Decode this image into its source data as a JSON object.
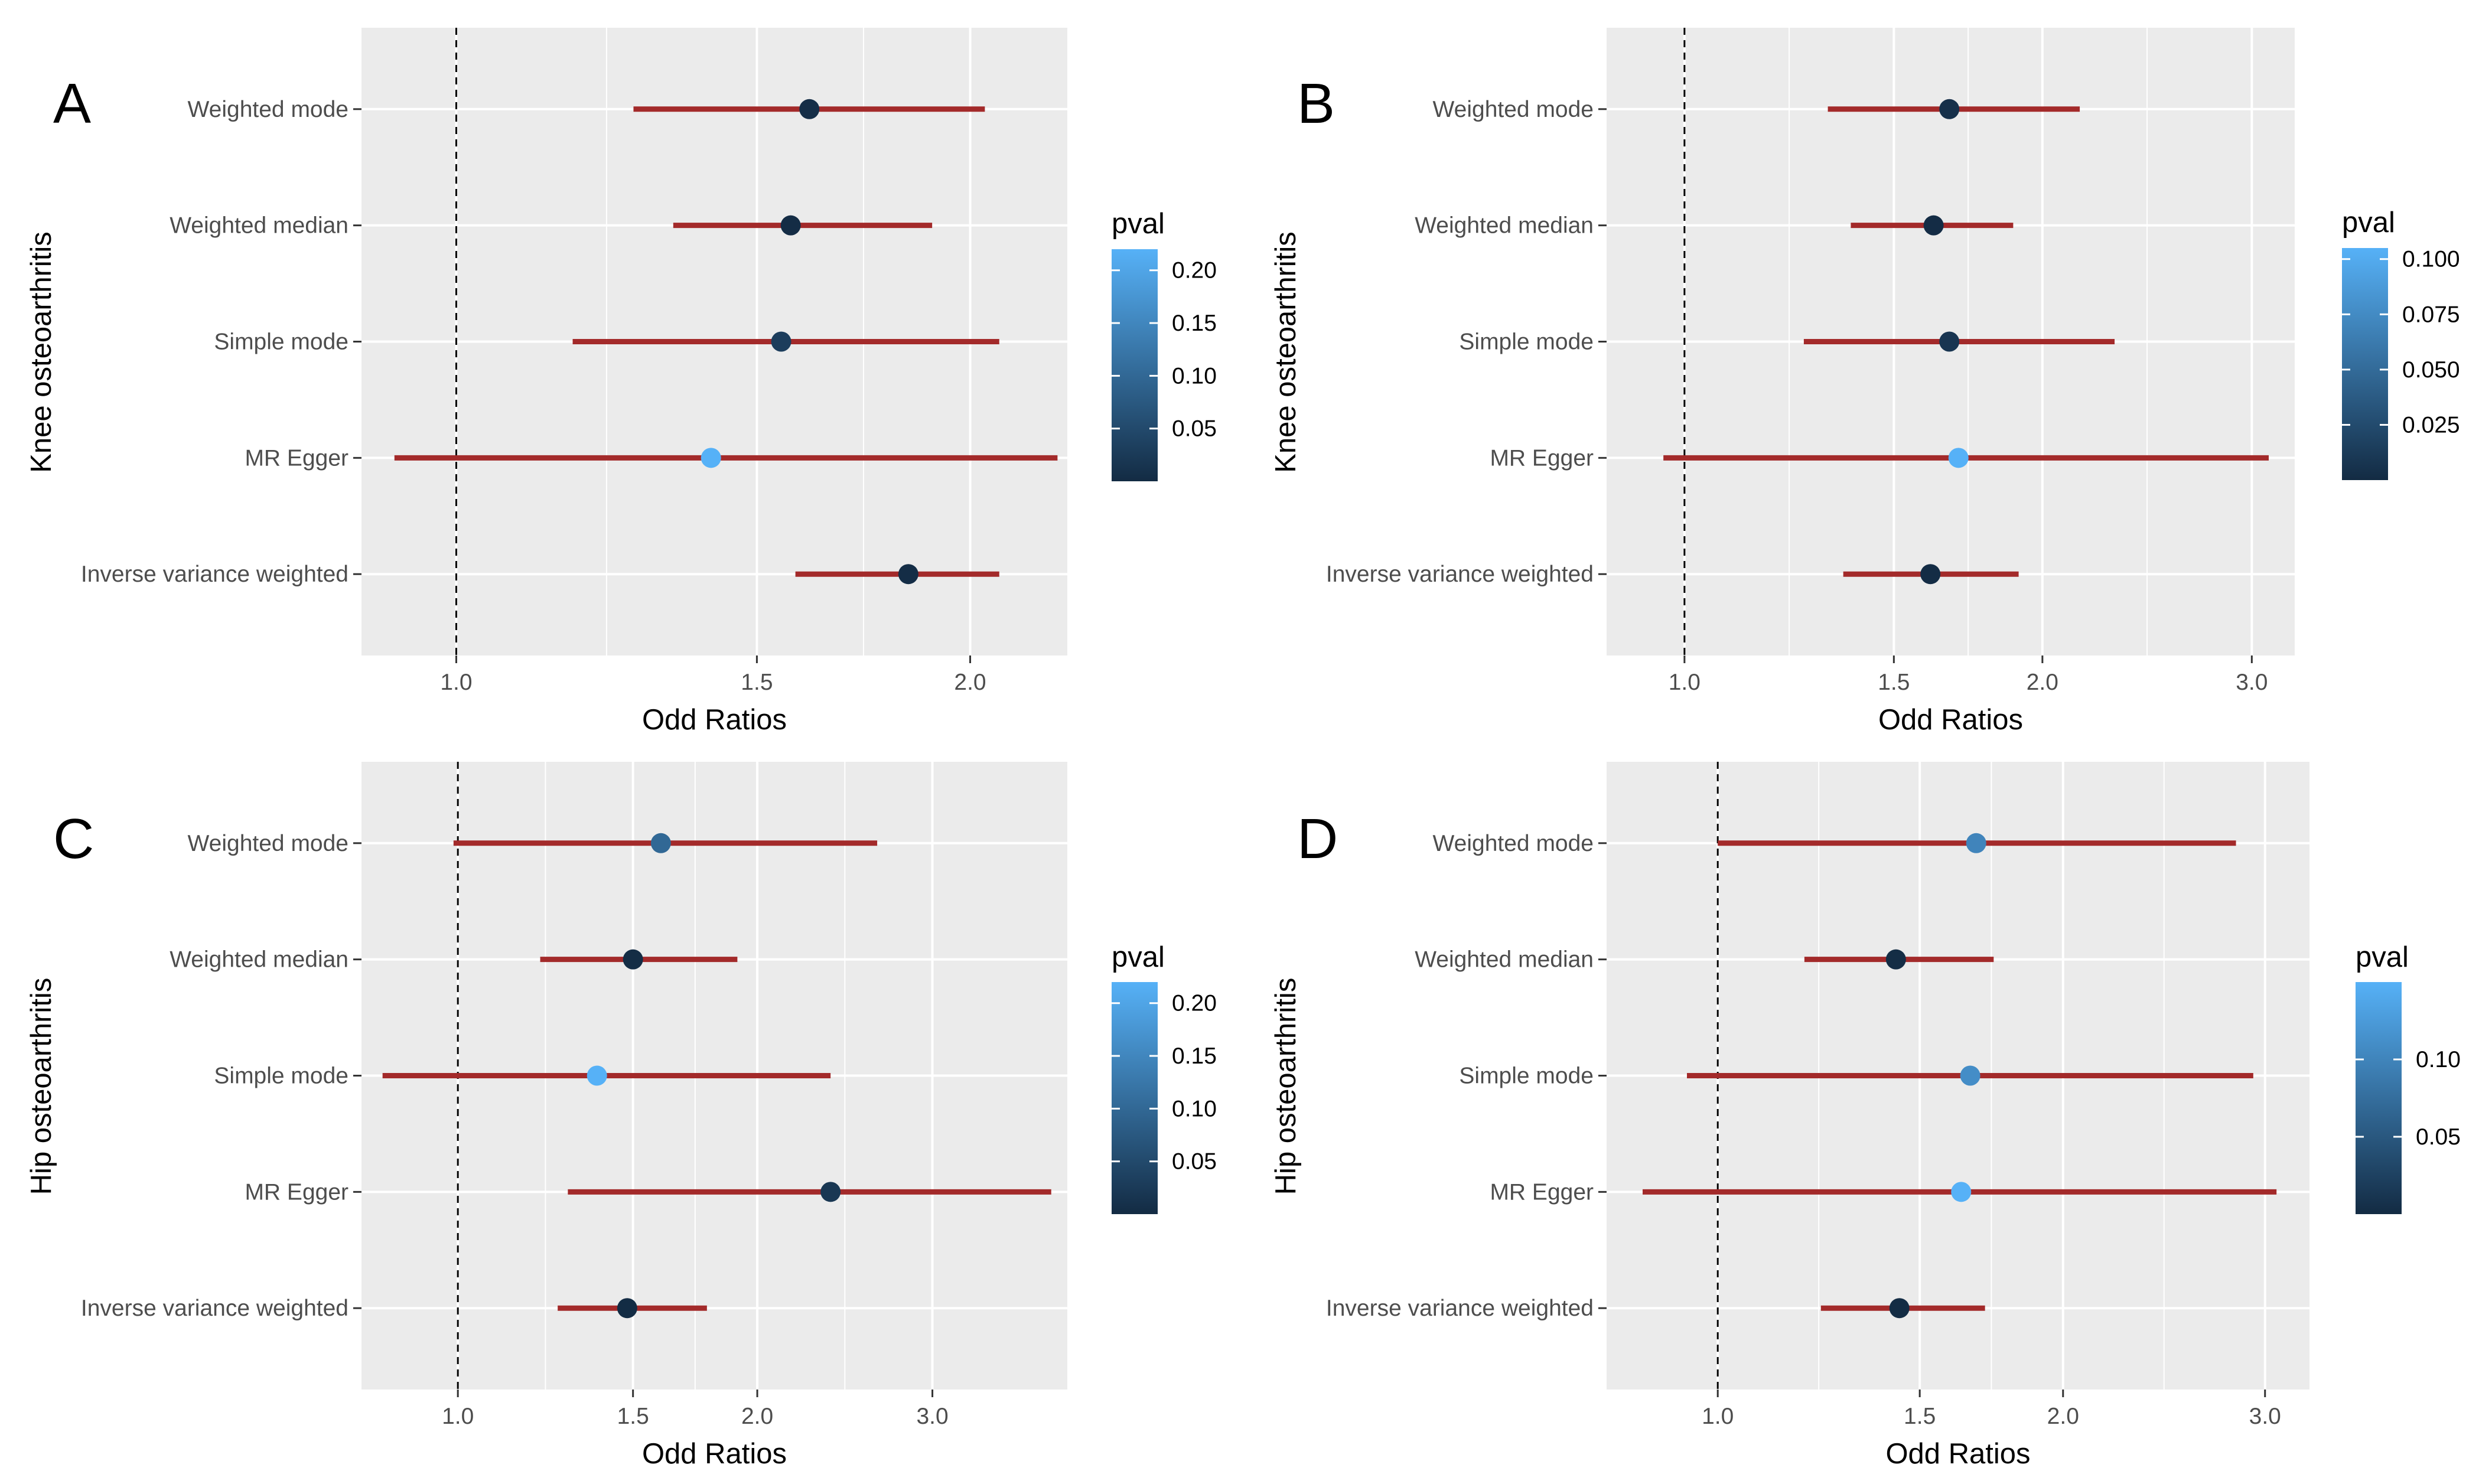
{
  "colors": {
    "panel_bg": "#ebebeb",
    "grid": "#ffffff",
    "ci_line": "#a32a2a",
    "pval_low": "#132b43",
    "pval_high": "#56b1f7",
    "reference_line": "#000000"
  },
  "chart_data": [
    {
      "type": "forest",
      "panel": "A",
      "ylabel": "Knee osteoarthritis",
      "xlabel": "Odd Ratios",
      "x_scale": "log",
      "xlim": [
        0.88,
        2.28
      ],
      "xticks": [
        1.0,
        1.5,
        2.0
      ],
      "xtick_labels": [
        "1.0",
        "1.5",
        "2.0"
      ],
      "reference_x": 1.0,
      "categories": [
        "Weighted mode",
        "Weighted median",
        "Simple mode",
        "MR Egger",
        "Inverse variance weighted"
      ],
      "or": [
        1.61,
        1.57,
        1.55,
        1.41,
        1.84
      ],
      "ci_low": [
        1.27,
        1.34,
        1.17,
        0.92,
        1.58
      ],
      "ci_high": [
        2.04,
        1.9,
        2.08,
        2.25,
        2.08
      ],
      "pval": [
        0.005,
        0.002,
        0.03,
        0.22,
        0.004
      ],
      "legend": {
        "title": "pval",
        "min": 0.0,
        "max": 0.22,
        "ticks": [
          0.05,
          0.1,
          0.15,
          0.2
        ],
        "tick_labels": [
          "0.05",
          "0.10",
          "0.15",
          "0.20"
        ]
      }
    },
    {
      "type": "forest",
      "panel": "B",
      "ylabel": "Knee osteoarthritis",
      "xlabel": "Odd Ratios",
      "x_scale": "log",
      "xlim": [
        0.86,
        3.26
      ],
      "xticks": [
        1.0,
        1.5,
        2.0,
        3.0
      ],
      "xtick_labels": [
        "1.0",
        "1.5",
        "2.0",
        "3.0"
      ],
      "reference_x": 1.0,
      "categories": [
        "Weighted mode",
        "Weighted median",
        "Simple mode",
        "MR Egger",
        "Inverse variance weighted"
      ],
      "or": [
        1.67,
        1.62,
        1.67,
        1.7,
        1.61
      ],
      "ci_low": [
        1.32,
        1.38,
        1.26,
        0.96,
        1.36
      ],
      "ci_high": [
        2.15,
        1.89,
        2.3,
        3.1,
        1.91
      ],
      "pval": [
        0.004,
        0.001,
        0.008,
        0.105,
        0.001
      ],
      "legend": {
        "title": "pval",
        "min": 0.0,
        "max": 0.105,
        "ticks": [
          0.025,
          0.05,
          0.075,
          0.1
        ],
        "tick_labels": [
          "0.025",
          "0.050",
          "0.075",
          "0.100"
        ]
      }
    },
    {
      "type": "forest",
      "panel": "C",
      "ylabel": "Hip osteoarthritis",
      "xlabel": "Odd Ratios",
      "x_scale": "log",
      "xlim": [
        0.8,
        4.1
      ],
      "xticks": [
        1.0,
        1.5,
        2.0,
        3.0
      ],
      "xtick_labels": [
        "1.0",
        "1.5",
        "2.0",
        "3.0"
      ],
      "reference_x": 1.0,
      "categories": [
        "Weighted mode",
        "Weighted median",
        "Simple mode",
        "MR Egger",
        "Inverse variance weighted"
      ],
      "or": [
        1.6,
        1.5,
        1.38,
        2.37,
        1.48
      ],
      "ci_low": [
        0.99,
        1.21,
        0.84,
        1.29,
        1.26
      ],
      "ci_high": [
        2.64,
        1.91,
        2.37,
        3.95,
        1.78
      ],
      "pval": [
        0.1,
        0.003,
        0.22,
        0.02,
        0.001
      ],
      "legend": {
        "title": "pval",
        "min": 0.0,
        "max": 0.22,
        "ticks": [
          0.05,
          0.1,
          0.15,
          0.2
        ],
        "tick_labels": [
          "0.05",
          "0.10",
          "0.15",
          "0.20"
        ]
      }
    },
    {
      "type": "forest",
      "panel": "D",
      "ylabel": "Hip osteoarthritis",
      "xlabel": "Odd Ratios",
      "x_scale": "log",
      "xlim": [
        0.8,
        3.28
      ],
      "xticks": [
        1.0,
        1.5,
        2.0,
        3.0
      ],
      "xtick_labels": [
        "1.0",
        "1.5",
        "2.0",
        "3.0"
      ],
      "reference_x": 1.0,
      "categories": [
        "Weighted mode",
        "Weighted median",
        "Simple mode",
        "MR Egger",
        "Inverse variance weighted"
      ],
      "or": [
        1.68,
        1.43,
        1.66,
        1.63,
        1.44
      ],
      "ci_low": [
        1.0,
        1.19,
        0.94,
        0.86,
        1.23
      ],
      "ci_high": [
        2.83,
        1.74,
        2.93,
        3.07,
        1.71
      ],
      "pval": [
        0.1,
        0.002,
        0.11,
        0.15,
        0.001
      ],
      "legend": {
        "title": "pval",
        "min": 0.0,
        "max": 0.15,
        "ticks": [
          0.05,
          0.1
        ],
        "tick_labels": [
          "0.05",
          "0.10"
        ]
      }
    }
  ]
}
